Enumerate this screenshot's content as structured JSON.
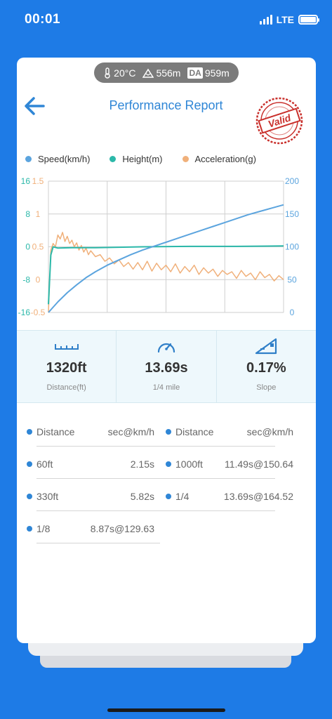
{
  "status_bar": {
    "time": "00:01",
    "network": "LTE"
  },
  "env": {
    "temperature": "20°C",
    "altitude": "556m",
    "da_label": "DA",
    "density_altitude": "959m"
  },
  "header": {
    "title": "Performance Report",
    "stamp_text": "Valid"
  },
  "legend": [
    {
      "label": "Speed(km/h)",
      "color": "#5ba4de"
    },
    {
      "label": "Height(m)",
      "color": "#2bb8a9"
    },
    {
      "label": "Acceleration(g)",
      "color": "#f0b07a"
    }
  ],
  "chart_data": {
    "type": "line",
    "axes": {
      "height_ticks": [
        "16",
        "8",
        "0",
        "-8",
        "-16"
      ],
      "height_range": [
        -16,
        16
      ],
      "accel_ticks": [
        "1.5",
        "1",
        "0.5",
        "0",
        "-0.5"
      ],
      "accel_range": [
        -0.5,
        1.5
      ],
      "speed_ticks": [
        "200",
        "150",
        "100",
        "50",
        "0"
      ],
      "speed_range": [
        0,
        200
      ]
    },
    "grid": true,
    "series": [
      {
        "name": "Speed(km/h)",
        "axis": "right",
        "x": [
          0,
          4,
          8,
          12,
          16,
          20,
          25,
          30,
          35,
          40,
          45,
          50,
          55,
          60,
          65,
          70,
          75,
          80,
          85,
          90,
          95,
          100
        ],
        "values": [
          0,
          16,
          30,
          42,
          53,
          62,
          72,
          80,
          88,
          95,
          101,
          107,
          113,
          119,
          125,
          131,
          137,
          143,
          149,
          154,
          159,
          164
        ]
      },
      {
        "name": "Height(m)",
        "axis": "left",
        "x": [
          0,
          1,
          2,
          4,
          10,
          20,
          40,
          60,
          80,
          100
        ],
        "values": [
          -14,
          -2,
          0,
          -0.3,
          -0.2,
          -0.2,
          0,
          0.1,
          0.1,
          0.2
        ]
      },
      {
        "name": "Acceleration(g)",
        "axis": "accel",
        "x": [
          0,
          1,
          2,
          3,
          4,
          5,
          6,
          7,
          8,
          9,
          10,
          11,
          12,
          13,
          14,
          15,
          16,
          17,
          18,
          20,
          22,
          24,
          26,
          28,
          30,
          32,
          34,
          36,
          38,
          40,
          42,
          44,
          46,
          48,
          50,
          52,
          54,
          56,
          58,
          60,
          62,
          64,
          66,
          68,
          70,
          72,
          74,
          76,
          78,
          80,
          82,
          84,
          86,
          88,
          90,
          92,
          94,
          96,
          98,
          100
        ],
        "values": [
          -0.5,
          0.45,
          0.55,
          0.5,
          0.68,
          0.62,
          0.72,
          0.58,
          0.66,
          0.55,
          0.6,
          0.5,
          0.56,
          0.45,
          0.52,
          0.42,
          0.48,
          0.38,
          0.44,
          0.35,
          0.38,
          0.28,
          0.33,
          0.24,
          0.3,
          0.2,
          0.26,
          0.16,
          0.26,
          0.15,
          0.28,
          0.13,
          0.25,
          0.15,
          0.22,
          0.12,
          0.24,
          0.1,
          0.2,
          0.12,
          0.22,
          0.08,
          0.18,
          0.1,
          0.16,
          0.05,
          0.14,
          0.08,
          0.12,
          0.02,
          0.14,
          0.05,
          0.1,
          0.0,
          0.12,
          0.03,
          0.08,
          -0.02,
          0.06,
          0.0
        ]
      }
    ]
  },
  "metrics": [
    {
      "value": "1320ft",
      "label": "Distance(ft)",
      "icon": "ruler-icon"
    },
    {
      "value": "13.69s",
      "label": "1/4 mile",
      "icon": "speedometer-icon"
    },
    {
      "value": "0.17%",
      "label": "Slope",
      "icon": "slope-icon"
    }
  ],
  "results": {
    "header_left": {
      "label": "Distance",
      "value": "sec@km/h"
    },
    "header_right": {
      "label": "Distance",
      "value": "sec@km/h"
    },
    "left": [
      {
        "label": "60ft",
        "value": "2.15s"
      },
      {
        "label": "330ft",
        "value": "5.82s"
      },
      {
        "label": "1/8",
        "value": "8.87s@129.63"
      }
    ],
    "right": [
      {
        "label": "1000ft",
        "value": "11.49s@150.64"
      },
      {
        "label": "1/4",
        "value": "13.69s@164.52"
      }
    ]
  }
}
